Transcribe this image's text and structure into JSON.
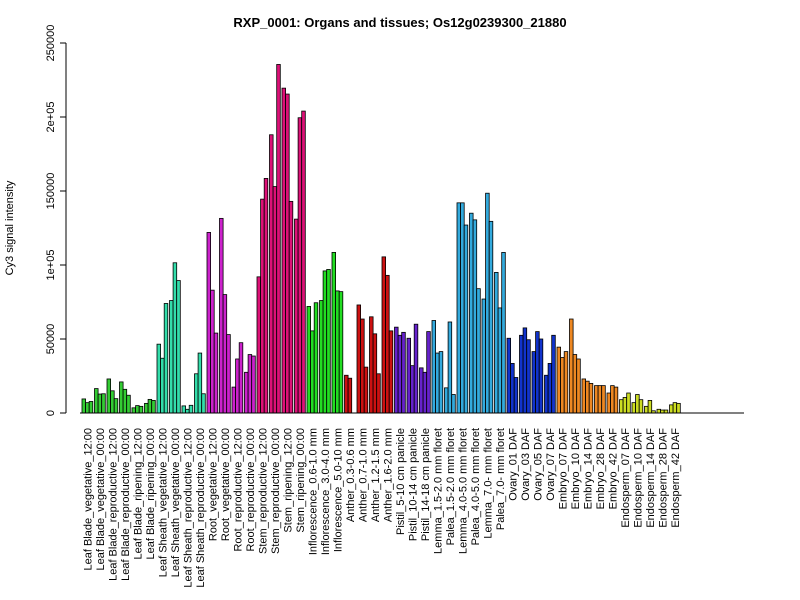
{
  "chart_data": {
    "type": "bar",
    "title": "RXP_0001: Organs and tissues; Os12g0239300_21880",
    "xlabel": "",
    "ylabel": "Cy3 signal intensity",
    "ylim": [
      0,
      250000
    ],
    "yticks": [
      0,
      50000,
      100000,
      150000,
      200000,
      250000
    ],
    "ytick_labels": [
      "0",
      "50000",
      "1e+05",
      "150000",
      "2e+05",
      "250000"
    ],
    "grid": false,
    "legend": "none",
    "groups": [
      {
        "label": "Leaf Blade_vegetative_12:00",
        "color": "#33cc33",
        "values": [
          9500,
          7000,
          7800
        ]
      },
      {
        "label": "Leaf Blade_vegetative_00:00",
        "color": "#33cc33",
        "values": [
          16500,
          12800,
          13000
        ]
      },
      {
        "label": "Leaf Blade_reproductive_12:00",
        "color": "#33cc33",
        "values": [
          23000,
          15000,
          9700
        ]
      },
      {
        "label": "Leaf Blade_reproductive_00:00",
        "color": "#33cc33",
        "values": [
          21000,
          16000,
          12000
        ]
      },
      {
        "label": "Leaf Blade_ripening_12:00",
        "color": "#33cc33",
        "values": [
          3500,
          5000,
          4500
        ]
      },
      {
        "label": "Leaf Blade_ripening_00:00",
        "color": "#33cc33",
        "values": [
          6500,
          9200,
          8500
        ]
      },
      {
        "label": "Leaf Sheath_vegetative_12:00",
        "color": "#33ddaa",
        "values": [
          46500,
          37000,
          74000
        ]
      },
      {
        "label": "Leaf Sheath_vegetative_00:00",
        "color": "#33ddaa",
        "values": [
          76000,
          101500,
          89500
        ]
      },
      {
        "label": "Leaf Sheath_reproductive_12:00",
        "color": "#33ddaa",
        "values": [
          4800,
          2500,
          5200
        ]
      },
      {
        "label": "Leaf Sheath_reproductive_00:00",
        "color": "#33ddaa",
        "values": [
          26500,
          40500,
          13000
        ]
      },
      {
        "label": "Root_vegetative_12:00",
        "color": "#cc22cc",
        "values": [
          122000,
          83000,
          54000
        ]
      },
      {
        "label": "Root_vegetative_00:00",
        "color": "#cc22cc",
        "values": [
          131500,
          80000,
          53000
        ]
      },
      {
        "label": "Root_reproductive_12:00",
        "color": "#cc22cc",
        "values": [
          17500,
          36500,
          47500
        ]
      },
      {
        "label": "Root_reproductive_00:00",
        "color": "#cc22cc",
        "values": [
          27500,
          39500,
          38500
        ]
      },
      {
        "label": "Stem_reproductive_12:00",
        "color": "#dd1177",
        "values": [
          92000,
          144500,
          158500
        ]
      },
      {
        "label": "Stem_reproductive_00:00",
        "color": "#dd1177",
        "values": [
          188000,
          153000,
          235500
        ]
      },
      {
        "label": "Stem_ripening_12:00",
        "color": "#dd1177",
        "values": [
          219500,
          215500,
          143000
        ]
      },
      {
        "label": "Stem_ripening_00:00",
        "color": "#dd1177",
        "values": [
          131000,
          199500,
          204000
        ]
      },
      {
        "label": "Inflorescence_0.6-1.0 mm",
        "color": "#22dd22",
        "values": [
          72000,
          55500,
          74500
        ]
      },
      {
        "label": "Inflorescence_3.0-4.0 mm",
        "color": "#22dd22",
        "values": [
          76000,
          96000,
          97000
        ]
      },
      {
        "label": "Inflorescence_5.0-10 mm",
        "color": "#22dd22",
        "values": [
          108500,
          82500,
          82000
        ]
      },
      {
        "label": "Anther_0.3-0.6 mm",
        "color": "#cc1111",
        "values": [
          25500,
          23500,
          0
        ]
      },
      {
        "label": "Anther_0.7-1.0 mm",
        "color": "#cc1111",
        "values": [
          73000,
          63500,
          31000
        ]
      },
      {
        "label": "Anther_1.2-1.5 mm",
        "color": "#cc1111",
        "values": [
          65000,
          53500,
          26500
        ]
      },
      {
        "label": "Anther_1.6-2.0 mm",
        "color": "#cc1111",
        "values": [
          105500,
          93000,
          55500
        ]
      },
      {
        "label": "Pistil_5-10 cm panicle",
        "color": "#6622cc",
        "values": [
          58000,
          52500,
          54500
        ]
      },
      {
        "label": "Pistil_10-14 cm panicle",
        "color": "#6622cc",
        "values": [
          50500,
          32000,
          60000
        ]
      },
      {
        "label": "Pistil_14-18 cm panicle",
        "color": "#6622cc",
        "values": [
          30500,
          27500,
          55000
        ]
      },
      {
        "label": "Lemma_1.5-2.0 mm floret",
        "color": "#33aadd",
        "values": [
          62500,
          40500,
          41500
        ]
      },
      {
        "label": "Palea_1.5-2.0 mm floret",
        "color": "#33aadd",
        "values": [
          17000,
          61500,
          12500
        ]
      },
      {
        "label": "Lemma_4.0-5.0 mm floret",
        "color": "#33aadd",
        "values": [
          142000,
          142000,
          127000
        ]
      },
      {
        "label": "Palea_4.0-5.0 mm floret",
        "color": "#33aadd",
        "values": [
          135000,
          130500,
          84000
        ]
      },
      {
        "label": "Lemma_7.0- mm floret",
        "color": "#33aadd",
        "values": [
          77000,
          148500,
          129500
        ]
      },
      {
        "label": "Palea_7.0- mm floret",
        "color": "#33aadd",
        "values": [
          95000,
          71000,
          108500
        ]
      },
      {
        "label": "Ovary_01 DAF",
        "color": "#1133cc",
        "values": [
          50500,
          33500,
          24000
        ]
      },
      {
        "label": "Ovary_03 DAF",
        "color": "#1133cc",
        "values": [
          52500,
          57500,
          49500
        ]
      },
      {
        "label": "Ovary_05 DAF",
        "color": "#1133cc",
        "values": [
          41500,
          55000,
          50000
        ]
      },
      {
        "label": "Ovary_07 DAF",
        "color": "#1133cc",
        "values": [
          25500,
          33500,
          52500
        ]
      },
      {
        "label": "Embryo_07 DAF",
        "color": "#ee8822",
        "values": [
          44500,
          37500,
          41500
        ]
      },
      {
        "label": "Embryo_10 DAF",
        "color": "#ee8822",
        "values": [
          63500,
          39500,
          36500
        ]
      },
      {
        "label": "Embryo_14 DAF",
        "color": "#ee8822",
        "values": [
          23000,
          21500,
          20000
        ]
      },
      {
        "label": "Embryo_28 DAF",
        "color": "#ee8822",
        "values": [
          18500,
          18500,
          18500
        ]
      },
      {
        "label": "Embryo_42 DAF",
        "color": "#ee8822",
        "values": [
          13500,
          18500,
          17500
        ]
      },
      {
        "label": "Endosperm_07 DAF",
        "color": "#ccdd22",
        "values": [
          9000,
          10500,
          13500
        ]
      },
      {
        "label": "Endosperm_10 DAF",
        "color": "#ccdd22",
        "values": [
          7000,
          12500,
          9000
        ]
      },
      {
        "label": "Endosperm_14 DAF",
        "color": "#ccdd22",
        "values": [
          4500,
          8500,
          1500
        ]
      },
      {
        "label": "Endosperm_28 DAF",
        "color": "#ccdd22",
        "values": [
          2500,
          2000,
          2000
        ]
      },
      {
        "label": "Endosperm_42 DAF",
        "color": "#ccdd22",
        "values": [
          5500,
          7000,
          6500
        ]
      }
    ]
  }
}
